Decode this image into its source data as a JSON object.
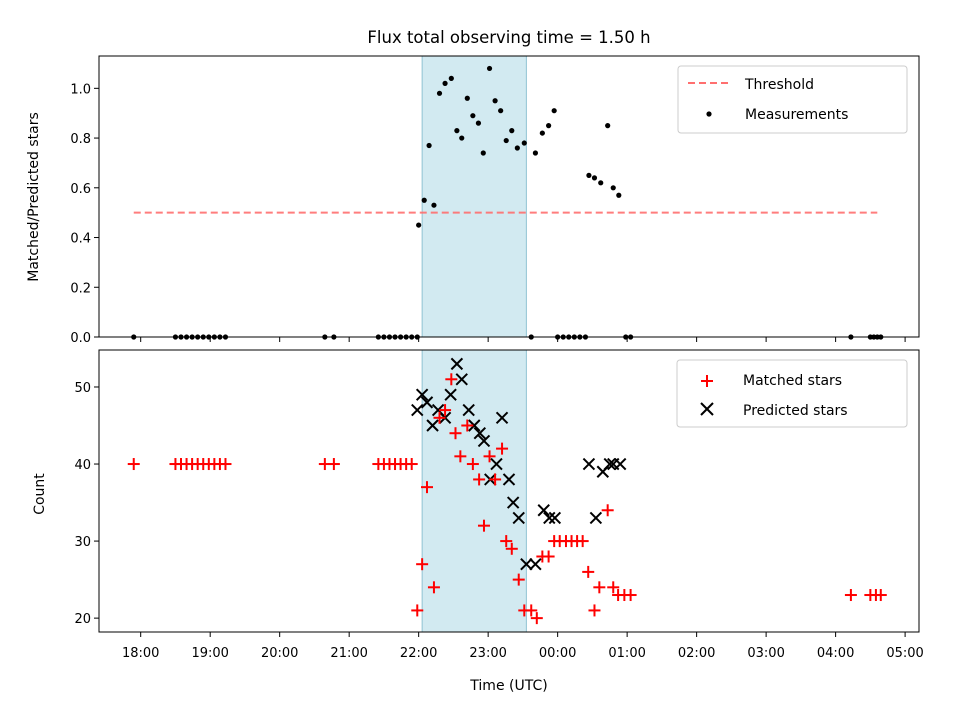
{
  "title": "Flux total observing time = 1.50 h",
  "colors": {
    "threshold": "#ff8080",
    "measurement": "#000000",
    "matched": "#ff0000",
    "predicted": "#000000",
    "span_fill": "#add8e6"
  },
  "chart_data": [
    {
      "type": "scatter",
      "title": "Flux total observing time = 1.50 h",
      "xlabel": "",
      "ylabel": "Matched/Predicted stars",
      "xlim": [
        17.4,
        29.2
      ],
      "ylim": [
        0,
        1.13
      ],
      "yticks": [
        "0.0",
        "0.2",
        "0.4",
        "0.6",
        "0.8",
        "1.0"
      ],
      "grid": false,
      "legend_position": "top-right",
      "shaded_span": [
        22.05,
        23.55
      ],
      "threshold": {
        "name": "Threshold",
        "style": "dashed",
        "x": [
          17.9,
          28.6
        ],
        "y": 0.5
      },
      "series": [
        {
          "name": "Measurements",
          "points": [
            [
              17.9,
              0
            ],
            [
              18.5,
              0
            ],
            [
              18.58,
              0
            ],
            [
              18.66,
              0
            ],
            [
              18.74,
              0
            ],
            [
              18.82,
              0
            ],
            [
              18.9,
              0
            ],
            [
              18.98,
              0
            ],
            [
              19.06,
              0
            ],
            [
              19.14,
              0
            ],
            [
              19.22,
              0
            ],
            [
              20.65,
              0
            ],
            [
              20.78,
              0
            ],
            [
              21.42,
              0
            ],
            [
              21.5,
              0
            ],
            [
              21.58,
              0
            ],
            [
              21.66,
              0
            ],
            [
              21.74,
              0
            ],
            [
              21.82,
              0
            ],
            [
              21.9,
              0
            ],
            [
              21.98,
              0
            ],
            [
              22.0,
              0.45
            ],
            [
              22.08,
              0.55
            ],
            [
              22.15,
              0.77
            ],
            [
              22.22,
              0.53
            ],
            [
              22.3,
              0.98
            ],
            [
              22.38,
              1.02
            ],
            [
              22.47,
              1.04
            ],
            [
              22.55,
              0.83
            ],
            [
              22.62,
              0.8
            ],
            [
              22.7,
              0.96
            ],
            [
              22.78,
              0.89
            ],
            [
              22.86,
              0.86
            ],
            [
              22.93,
              0.74
            ],
            [
              23.02,
              1.08
            ],
            [
              23.1,
              0.95
            ],
            [
              23.18,
              0.91
            ],
            [
              23.26,
              0.79
            ],
            [
              23.34,
              0.83
            ],
            [
              23.42,
              0.76
            ],
            [
              23.52,
              0.78
            ],
            [
              23.62,
              0
            ],
            [
              23.68,
              0.74
            ],
            [
              23.78,
              0.82
            ],
            [
              23.87,
              0.85
            ],
            [
              23.95,
              0.91
            ],
            [
              24.0,
              0
            ],
            [
              24.08,
              0
            ],
            [
              24.16,
              0
            ],
            [
              24.24,
              0
            ],
            [
              24.32,
              0
            ],
            [
              24.4,
              0
            ],
            [
              24.45,
              0.65
            ],
            [
              24.53,
              0.64
            ],
            [
              24.62,
              0.62
            ],
            [
              24.72,
              0.85
            ],
            [
              24.8,
              0.6
            ],
            [
              24.88,
              0.57
            ],
            [
              24.98,
              0
            ],
            [
              25.05,
              0
            ],
            [
              28.22,
              0
            ],
            [
              28.5,
              0
            ],
            [
              28.55,
              0
            ],
            [
              28.6,
              0
            ],
            [
              28.65,
              0
            ]
          ]
        }
      ]
    },
    {
      "type": "scatter",
      "title": "",
      "xlabel": "Time (UTC)",
      "ylabel": "Count",
      "xlim": [
        17.4,
        29.2
      ],
      "ylim": [
        18.2,
        54.8
      ],
      "yticks": [
        "20",
        "30",
        "40",
        "50"
      ],
      "xticks": [
        "18:00",
        "19:00",
        "20:00",
        "21:00",
        "22:00",
        "23:00",
        "00:00",
        "01:00",
        "02:00",
        "03:00",
        "04:00",
        "05:00"
      ],
      "grid": false,
      "legend_position": "top-right",
      "shaded_span": [
        22.05,
        23.55
      ],
      "series": [
        {
          "name": "Matched stars",
          "marker": "plus",
          "points": [
            [
              17.9,
              40
            ],
            [
              18.5,
              40
            ],
            [
              18.58,
              40
            ],
            [
              18.66,
              40
            ],
            [
              18.74,
              40
            ],
            [
              18.82,
              40
            ],
            [
              18.9,
              40
            ],
            [
              18.98,
              40
            ],
            [
              19.06,
              40
            ],
            [
              19.14,
              40
            ],
            [
              19.22,
              40
            ],
            [
              20.65,
              40
            ],
            [
              20.78,
              40
            ],
            [
              21.42,
              40
            ],
            [
              21.5,
              40
            ],
            [
              21.58,
              40
            ],
            [
              21.66,
              40
            ],
            [
              21.74,
              40
            ],
            [
              21.82,
              40
            ],
            [
              21.9,
              40
            ],
            [
              21.98,
              21
            ],
            [
              22.05,
              27
            ],
            [
              22.12,
              37
            ],
            [
              22.22,
              24
            ],
            [
              22.3,
              46
            ],
            [
              22.38,
              47
            ],
            [
              22.47,
              51
            ],
            [
              22.53,
              44
            ],
            [
              22.6,
              41
            ],
            [
              22.7,
              45
            ],
            [
              22.78,
              40
            ],
            [
              22.87,
              38
            ],
            [
              22.94,
              32
            ],
            [
              23.02,
              41
            ],
            [
              23.1,
              38
            ],
            [
              23.2,
              42
            ],
            [
              23.26,
              30
            ],
            [
              23.34,
              29
            ],
            [
              23.44,
              25
            ],
            [
              23.52,
              21
            ],
            [
              23.62,
              21
            ],
            [
              23.7,
              20
            ],
            [
              23.78,
              28
            ],
            [
              23.87,
              28
            ],
            [
              23.95,
              30
            ],
            [
              24.03,
              30
            ],
            [
              24.12,
              30
            ],
            [
              24.2,
              30
            ],
            [
              24.28,
              30
            ],
            [
              24.36,
              30
            ],
            [
              24.44,
              26
            ],
            [
              24.53,
              21
            ],
            [
              24.6,
              24
            ],
            [
              24.72,
              34
            ],
            [
              24.8,
              24
            ],
            [
              24.87,
              23
            ],
            [
              24.96,
              23
            ],
            [
              25.05,
              23
            ],
            [
              28.22,
              23
            ],
            [
              28.5,
              23
            ],
            [
              28.58,
              23
            ],
            [
              28.65,
              23
            ]
          ]
        },
        {
          "name": "Predicted stars",
          "marker": "x",
          "points": [
            [
              21.98,
              47
            ],
            [
              22.05,
              49
            ],
            [
              22.12,
              48
            ],
            [
              22.2,
              45
            ],
            [
              22.28,
              47
            ],
            [
              22.38,
              46
            ],
            [
              22.46,
              49
            ],
            [
              22.55,
              53
            ],
            [
              22.62,
              51
            ],
            [
              22.72,
              47
            ],
            [
              22.8,
              45
            ],
            [
              22.88,
              44
            ],
            [
              22.94,
              43
            ],
            [
              23.03,
              38
            ],
            [
              23.12,
              40
            ],
            [
              23.2,
              46
            ],
            [
              23.3,
              38
            ],
            [
              23.36,
              35
            ],
            [
              23.44,
              33
            ],
            [
              23.55,
              27
            ],
            [
              23.68,
              27
            ],
            [
              23.8,
              34
            ],
            [
              23.88,
              33
            ],
            [
              23.96,
              33
            ],
            [
              24.45,
              40
            ],
            [
              24.55,
              33
            ],
            [
              24.65,
              39
            ],
            [
              24.75,
              40
            ],
            [
              24.8,
              40
            ],
            [
              24.9,
              40
            ]
          ]
        }
      ]
    }
  ]
}
